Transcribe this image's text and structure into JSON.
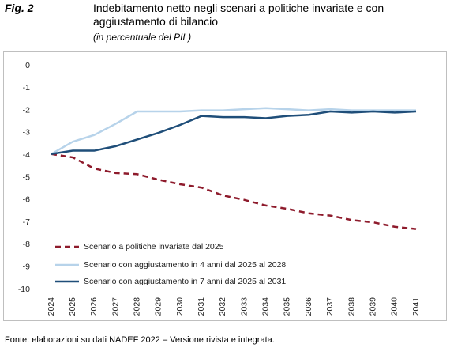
{
  "chart_data": {
    "type": "line",
    "label": "Fig. 2",
    "separator": "–",
    "title": "Indebitamento netto negli scenari a politiche invariate e con aggiustamento di bilancio",
    "subtitle": "(in percentuale del PIL)",
    "source": "Fonte: elaborazioni su dati NADEF 2022 – Versione rivista e integrata.",
    "categories": [
      "2024",
      "2025",
      "2026",
      "2027",
      "2028",
      "2029",
      "2030",
      "2031",
      "2032",
      "2033",
      "2034",
      "2035",
      "2036",
      "2037",
      "2038",
      "2039",
      "2040",
      "2041"
    ],
    "series": [
      {
        "name": "Scenario a politiche invariate dal 2025",
        "color": "#8e1b2c",
        "line_style": "dashed",
        "values": [
          -3.95,
          -4.1,
          -4.6,
          -4.8,
          -4.85,
          -5.1,
          -5.3,
          -5.45,
          -5.8,
          -6.0,
          -6.25,
          -6.4,
          -6.6,
          -6.7,
          -6.9,
          -7.0,
          -7.2,
          -7.3
        ]
      },
      {
        "name": "Scenario con aggiustamento in 4 anni dal 2025 al 2028",
        "color": "#b7d3ea",
        "line_style": "solid",
        "values": [
          -3.95,
          -3.4,
          -3.1,
          -2.6,
          -2.05,
          -2.05,
          -2.05,
          -2.0,
          -2.0,
          -1.95,
          -1.9,
          -1.95,
          -2.0,
          -1.95,
          -2.0,
          -2.0,
          -2.0,
          -2.0
        ]
      },
      {
        "name": "Scenario con aggiustamento in 7 anni dal 2025 al 2031",
        "color": "#1f4e79",
        "line_style": "solid",
        "values": [
          -3.95,
          -3.8,
          -3.8,
          -3.6,
          -3.3,
          -3.0,
          -2.65,
          -2.25,
          -2.3,
          -2.3,
          -2.35,
          -2.25,
          -2.2,
          -2.05,
          -2.1,
          -2.05,
          -2.1,
          -2.05
        ]
      }
    ],
    "ylim": [
      -10,
      0
    ],
    "yticks": [
      0,
      -1,
      -2,
      -3,
      -4,
      -5,
      -6,
      -7,
      -8,
      -9,
      -10
    ],
    "grid": false,
    "legend": "bottom-left"
  }
}
